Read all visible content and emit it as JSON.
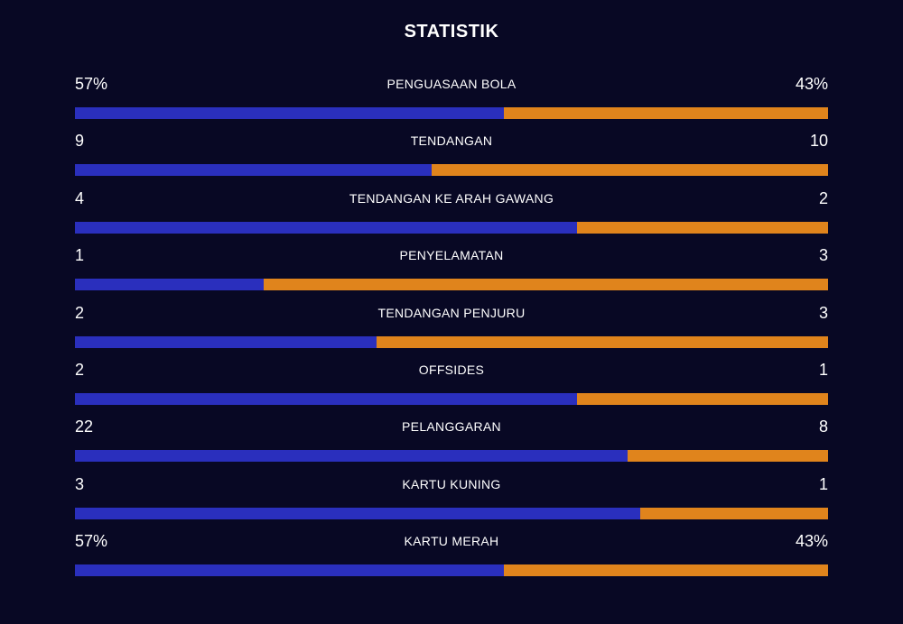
{
  "title": "STATISTIK",
  "colors": {
    "background": "#080824",
    "home": "#2a2fbd",
    "away": "#e0841c"
  },
  "stats": [
    {
      "label": "PENGUASAAN BOLA",
      "home": "57%",
      "away": "43%",
      "home_share": 0.57
    },
    {
      "label": "TENDANGAN",
      "home": "9",
      "away": "10",
      "home_share": 0.4737
    },
    {
      "label": "TENDANGAN KE ARAH GAWANG",
      "home": "4",
      "away": "2",
      "home_share": 0.6667
    },
    {
      "label": "PENYELAMATAN",
      "home": "1",
      "away": "3",
      "home_share": 0.25
    },
    {
      "label": "TENDANGAN PENJURU",
      "home": "2",
      "away": "3",
      "home_share": 0.4
    },
    {
      "label": "OFFSIDES",
      "home": "2",
      "away": "1",
      "home_share": 0.6667
    },
    {
      "label": "PELANGGARAN",
      "home": "22",
      "away": "8",
      "home_share": 0.7333
    },
    {
      "label": "KARTU KUNING",
      "home": "3",
      "away": "1",
      "home_share": 0.75
    },
    {
      "label": "KARTU MERAH",
      "home": "57%",
      "away": "43%",
      "home_share": 0.57
    }
  ]
}
